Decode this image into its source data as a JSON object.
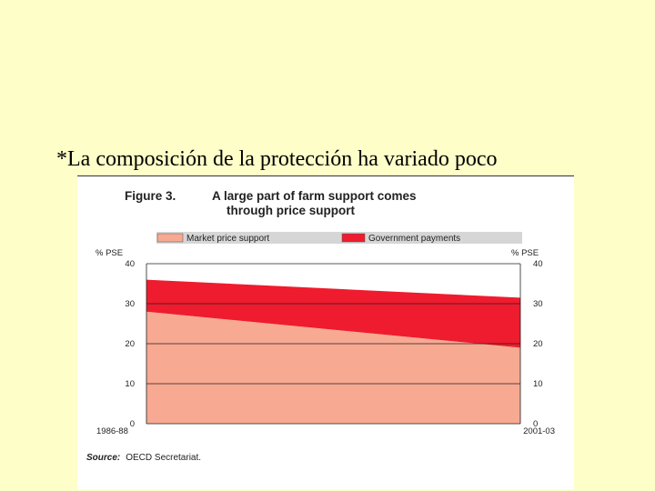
{
  "slide": {
    "title": "*La composición de la protección ha variado poco"
  },
  "figure": {
    "label": "Figure 3.",
    "title_line1": "A large part of farm support comes",
    "title_line2": "through price support",
    "source_label": "Source:",
    "source_text": "OECD Secretariat."
  },
  "chart_data": {
    "type": "area",
    "stacked": true,
    "categories": [
      "1986-88",
      "2001-03"
    ],
    "series": [
      {
        "name": "Market price support",
        "values": [
          28,
          19
        ],
        "color": "#f7a992"
      },
      {
        "name": "Government payments",
        "values": [
          8,
          12.5
        ],
        "color": "#ee1c2e"
      }
    ],
    "ylabel_left": "% PSE",
    "ylabel_right": "% PSE",
    "ylim": [
      0,
      40
    ],
    "yticks": [
      0,
      10,
      20,
      30,
      40
    ],
    "grid": true,
    "legend_position": "top"
  }
}
